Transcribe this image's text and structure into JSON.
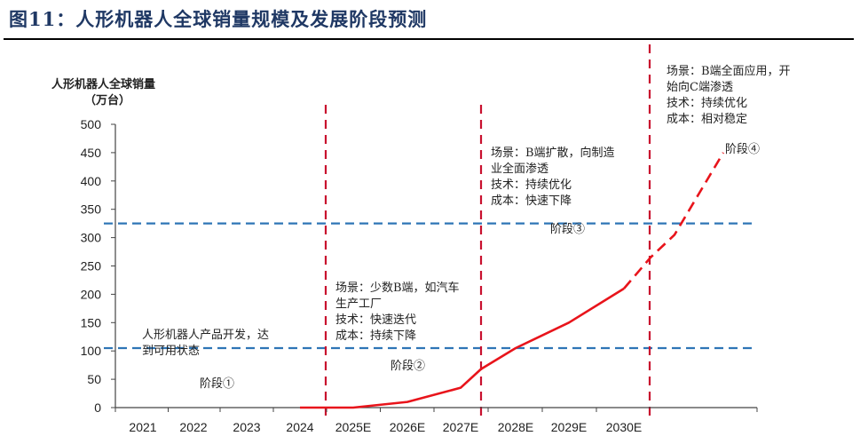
{
  "title": "图11：人形机器人全球销量规模及发展阶段预测",
  "chart_data": {
    "type": "line",
    "ylabel": "人形机器人全球销量",
    "yunit": "（万台）",
    "categories": [
      "2021",
      "2022",
      "2023",
      "2024",
      "2025E",
      "2026E",
      "2027E",
      "2028E",
      "2029E",
      "2030E"
    ],
    "ylim": [
      0,
      500
    ],
    "yticks": [
      0,
      50,
      100,
      150,
      200,
      250,
      300,
      350,
      400,
      450,
      500
    ],
    "series": [
      {
        "style": "solid",
        "color": "#e8141b",
        "points": [
          [
            "2024",
            0
          ],
          [
            "2025E",
            0
          ],
          [
            "2026E",
            10
          ],
          [
            "2027E",
            35
          ],
          [
            "2027E+",
            68
          ],
          [
            "2028E",
            105
          ],
          [
            "2029E",
            150
          ],
          [
            "2030E",
            210
          ]
        ]
      },
      {
        "style": "dashed",
        "color": "#e8141b",
        "points": [
          [
            "2030E",
            210
          ],
          [
            "2030E+",
            265
          ],
          [
            "2031E",
            305
          ],
          [
            "2032E",
            450
          ]
        ]
      }
    ],
    "thresholds": [
      {
        "value": 105,
        "color": "#2e75b6"
      },
      {
        "value": 325,
        "color": "#2e75b6"
      }
    ],
    "stage_lines_after": [
      "2024",
      "2027E",
      "2030E"
    ],
    "stages": [
      {
        "label": "阶段①",
        "lines": [
          "人形机器人产品开发，达",
          "到可用状态"
        ]
      },
      {
        "label": "阶段②",
        "lines": [
          "场景：少数B端，如汽车",
          "生产工厂",
          "技术：快速迭代",
          "成本：持续下降"
        ]
      },
      {
        "label": "阶段③",
        "lines": [
          "场景：B端扩散，向制造",
          "业全面渗透",
          "技术：持续优化",
          "成本：快速下降"
        ]
      },
      {
        "label": "阶段④",
        "lines": [
          "场景：B端全面应用，开",
          "始向C端渗透",
          "技术：持续优化",
          "成本：相对稳定"
        ]
      }
    ]
  }
}
